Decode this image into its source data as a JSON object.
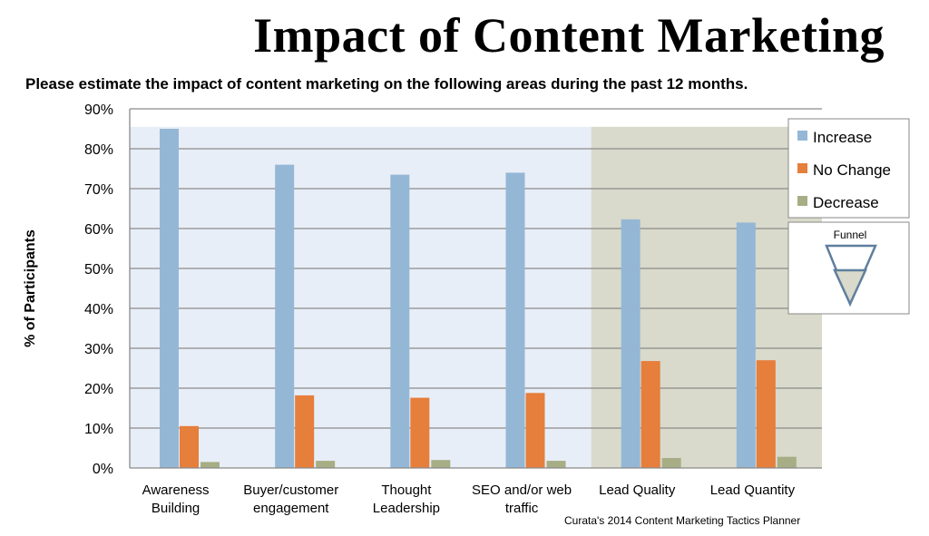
{
  "title": "Impact of Content Marketing",
  "subtitle": "Please estimate the impact of content marketing on the following areas during the past 12 months.",
  "source": "Curata's 2014 Content Marketing Tactics Planner",
  "funnel_label": "Funnel",
  "colors": {
    "increase": "#95b7d6",
    "no_change": "#e67e3c",
    "decrease": "#a7ae85",
    "bg_left": "#e8eef7",
    "bg_right": "#d9dacb",
    "funnel_stroke": "#5f7f9e",
    "funnel_fill": "#d9dacb"
  },
  "chart_data": {
    "type": "bar",
    "title": "Impact of Content Marketing",
    "subtitle": "Please estimate the impact of content marketing on the following areas during the past 12 months.",
    "ylabel": "% of Participants",
    "xlabel": "",
    "ylim": [
      0,
      90
    ],
    "yticks": [
      "0%",
      "10%",
      "20%",
      "30%",
      "40%",
      "50%",
      "60%",
      "70%",
      "80%",
      "90%"
    ],
    "grid": true,
    "legend_position": "top-right",
    "categories": [
      [
        "Awareness",
        "Building"
      ],
      [
        "Buyer/customer",
        "engagement"
      ],
      [
        "Thought",
        "Leadership"
      ],
      [
        "SEO and/or web",
        "traffic"
      ],
      [
        "Lead Quality"
      ],
      [
        "Lead Quantity"
      ]
    ],
    "series": [
      {
        "name": "Increase",
        "values": [
          85,
          76,
          73.5,
          74,
          62.3,
          61.5
        ]
      },
      {
        "name": "No Change",
        "values": [
          10.5,
          18.2,
          17.6,
          18.8,
          26.8,
          27
        ]
      },
      {
        "name": "Decrease",
        "values": [
          1.5,
          1.8,
          2,
          1.8,
          2.5,
          2.8
        ]
      }
    ]
  }
}
